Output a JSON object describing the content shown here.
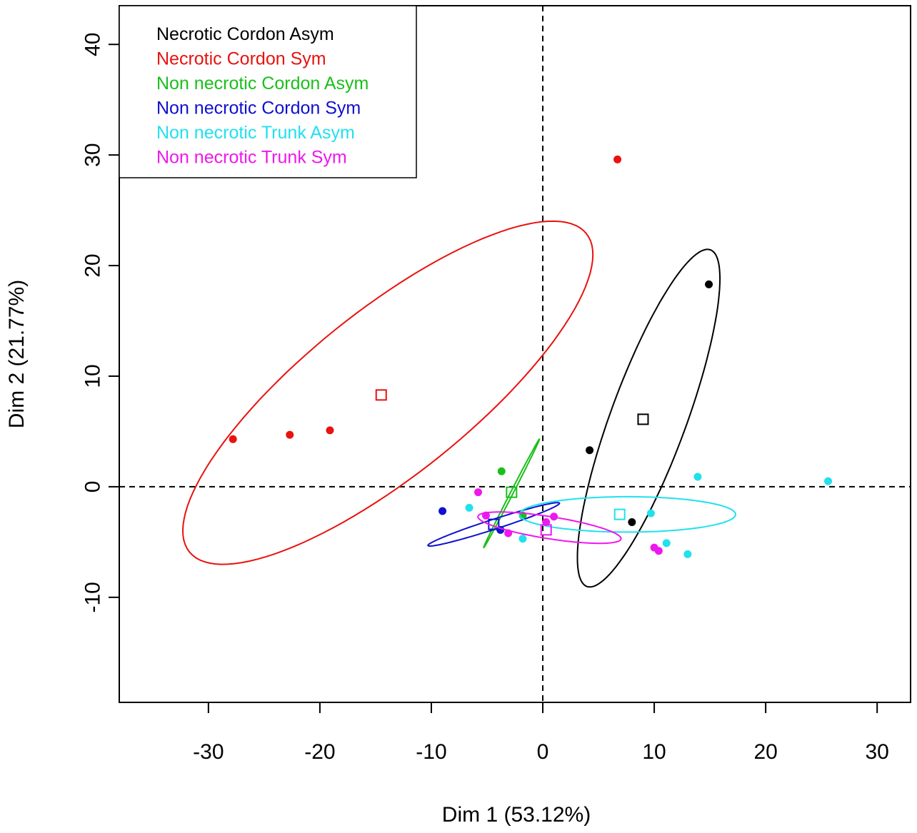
{
  "chart_data": {
    "type": "scatter",
    "xlabel": "Dim 1 (53.12%)",
    "ylabel": "Dim 2 (21.77%)",
    "xlim": [
      -38,
      33
    ],
    "ylim": [
      -19.5,
      43.5
    ],
    "xticks": [
      -30,
      -20,
      -10,
      0,
      10,
      20,
      30
    ],
    "xtick_labels": [
      "-30",
      "-20",
      "-10",
      "0",
      "10",
      "20",
      "30"
    ],
    "yticks": [
      -10,
      0,
      10,
      20,
      30,
      40
    ],
    "ytick_labels": [
      "-10",
      "0",
      "10",
      "20",
      "30",
      "40"
    ],
    "reference_lines": {
      "x": 0,
      "y": 0,
      "style": "dashed"
    },
    "legend": {
      "position": "top-left",
      "entries": [
        {
          "label": "Necrotic Cordon Asym",
          "color": "#000000"
        },
        {
          "label": "Necrotic Cordon Sym",
          "color": "#e8120f"
        },
        {
          "label": "Non necrotic Cordon Asym",
          "color": "#1bbf1b"
        },
        {
          "label": "Non necrotic Cordon Sym",
          "color": "#1010d0"
        },
        {
          "label": "Non necrotic Trunk Asym",
          "color": "#22e0ee"
        },
        {
          "label": "Non necrotic Trunk Sym",
          "color": "#ee18ee"
        }
      ]
    },
    "series": [
      {
        "name": "Necrotic Cordon Asym",
        "color": "#000000",
        "points": [
          [
            14.9,
            18.3
          ],
          [
            4.2,
            3.3
          ],
          [
            8.0,
            -3.2
          ]
        ],
        "centroid": [
          9.0,
          6.1
        ],
        "ellipse": {
          "center": [
            9.5,
            6.2
          ],
          "semi_major": 16.2,
          "semi_minor": 3.4,
          "angle_deg": 70
        }
      },
      {
        "name": "Necrotic Cordon Sym",
        "color": "#e8120f",
        "points": [
          [
            6.7,
            29.6
          ],
          [
            -27.8,
            4.3
          ],
          [
            -22.7,
            4.7
          ],
          [
            -19.1,
            5.1
          ]
        ],
        "centroid": [
          -14.5,
          8.3
        ],
        "ellipse": {
          "center": [
            -13.9,
            8.5
          ],
          "semi_major": 22.9,
          "semi_minor": 7.4,
          "angle_deg": 39
        }
      },
      {
        "name": "Non necrotic Cordon Asym",
        "color": "#1bbf1b",
        "points": [
          [
            -3.7,
            1.4
          ],
          [
            -1.8,
            -2.6
          ]
        ],
        "centroid": [
          -2.8,
          -0.5
        ],
        "ellipse": {
          "center": [
            -2.8,
            -0.6
          ],
          "semi_major": 5.5,
          "semi_minor": 0.12,
          "angle_deg": 63
        }
      },
      {
        "name": "Non necrotic Cordon Sym",
        "color": "#1010d0",
        "points": [
          [
            -9.0,
            -2.2
          ],
          [
            -3.8,
            -3.9
          ]
        ],
        "centroid": [
          -4.4,
          -3.4
        ],
        "ellipse": {
          "center": [
            -4.4,
            -3.4
          ],
          "semi_major": 6.2,
          "semi_minor": 0.45,
          "angle_deg": 18
        }
      },
      {
        "name": "Non necrotic Trunk Asym",
        "color": "#22e0ee",
        "points": [
          [
            25.6,
            0.5
          ],
          [
            13.9,
            0.9
          ],
          [
            9.7,
            -2.4
          ],
          [
            11.1,
            -5.1
          ],
          [
            13.0,
            -6.1
          ],
          [
            -6.6,
            -1.9
          ],
          [
            -1.8,
            -4.7
          ]
        ],
        "centroid": [
          6.9,
          -2.5
        ],
        "ellipse": {
          "center": [
            7.6,
            -2.5
          ],
          "semi_major": 9.7,
          "semi_minor": 1.6,
          "angle_deg": 0
        }
      },
      {
        "name": "Non necrotic Trunk Sym",
        "color": "#ee18ee",
        "points": [
          [
            -5.8,
            -0.5
          ],
          [
            -5.1,
            -2.6
          ],
          [
            -3.1,
            -4.2
          ],
          [
            0.3,
            -3.2
          ],
          [
            1.0,
            -2.7
          ],
          [
            10.0,
            -5.5
          ],
          [
            10.4,
            -5.8
          ]
        ],
        "centroid": [
          0.3,
          -3.9
        ],
        "ellipse": {
          "center": [
            0.6,
            -3.7
          ],
          "semi_major": 6.5,
          "semi_minor": 1.0,
          "angle_deg": -9
        }
      }
    ]
  }
}
